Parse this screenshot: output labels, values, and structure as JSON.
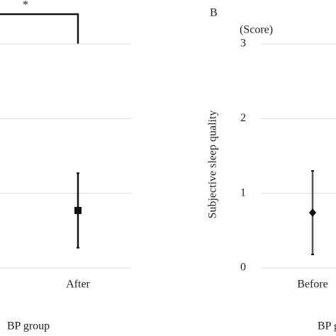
{
  "chart_data": [
    {
      "type": "errorbar",
      "xlabel": "BP group",
      "categories": [
        "After"
      ],
      "values": [
        0.77
      ],
      "error": [
        0.5
      ],
      "marker": "square",
      "color": "#111111",
      "ylim": [
        0,
        3
      ],
      "yticks": [
        0,
        1,
        2,
        3
      ],
      "grid": true,
      "annotation": "*"
    },
    {
      "type": "errorbar",
      "panel_label": "B",
      "xlabel": "BP group",
      "ylabel": "Subjective sleep quality",
      "yunit": "(Score)",
      "categories": [
        "Before"
      ],
      "values": [
        0.74
      ],
      "error": [
        0.56
      ],
      "marker": "diamond",
      "color": "#111111",
      "ylim": [
        0,
        3
      ],
      "yticks": [
        0,
        1,
        2,
        3
      ],
      "grid": true
    }
  ]
}
